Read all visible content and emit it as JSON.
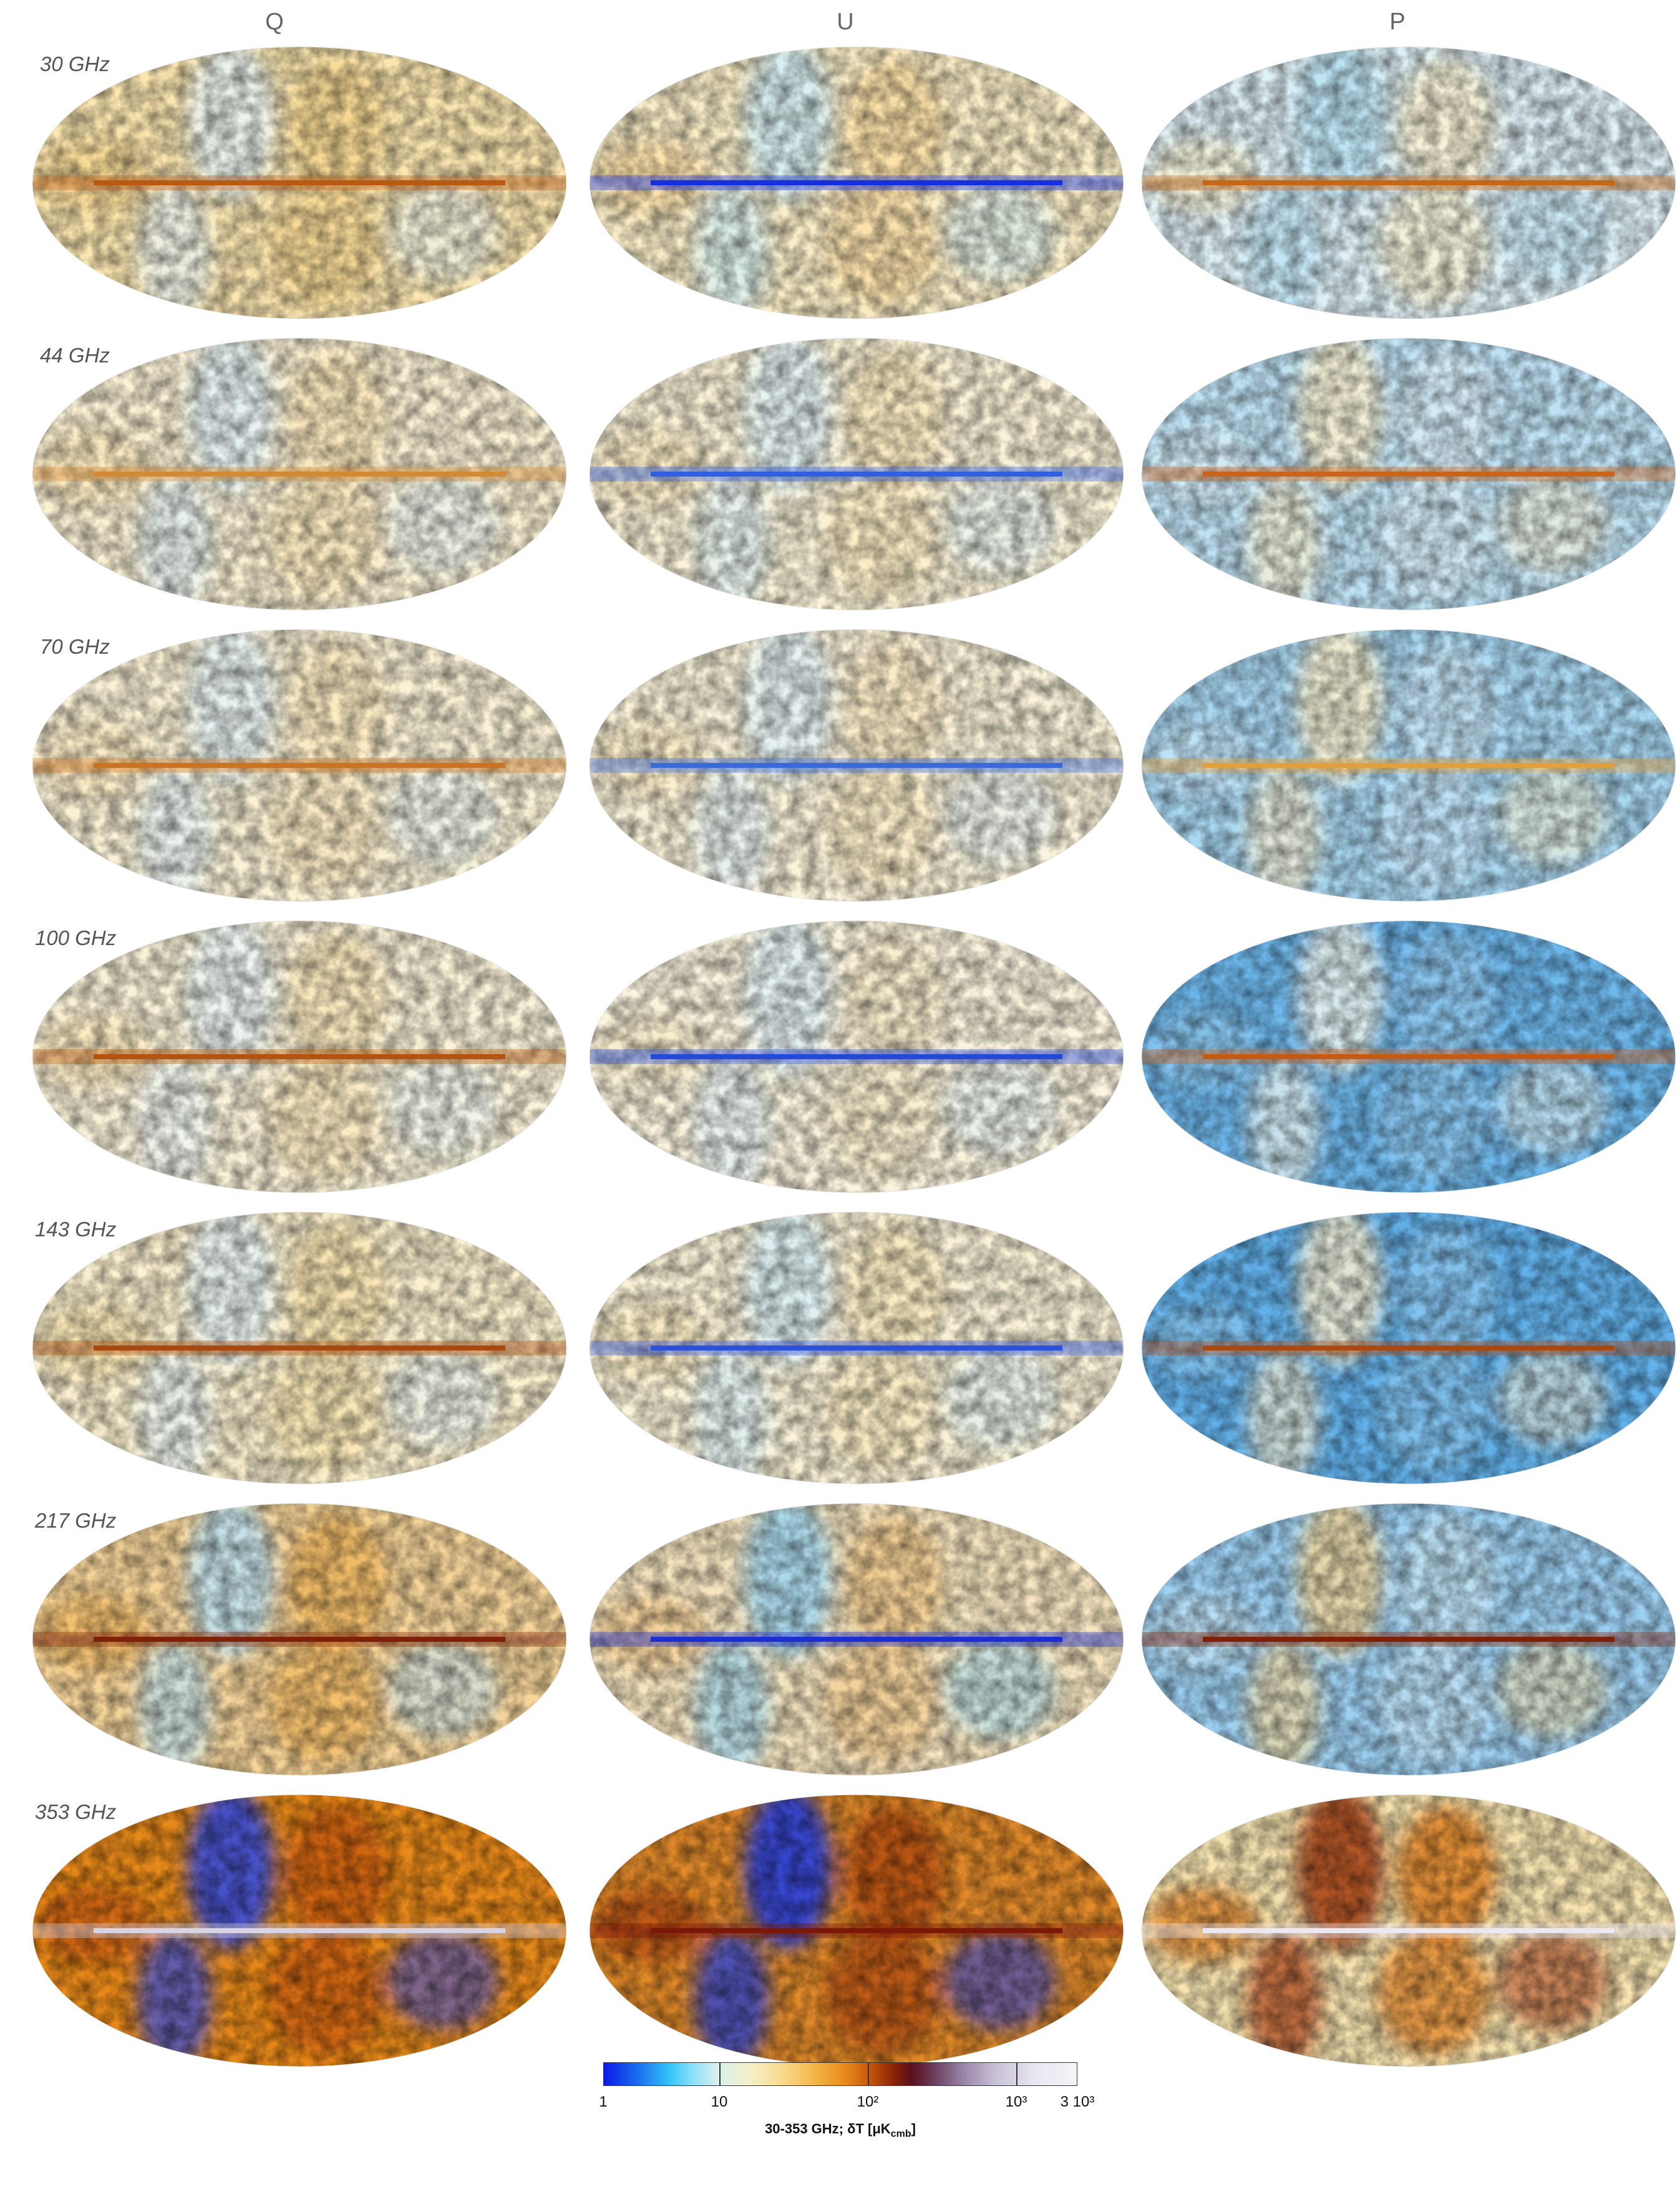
{
  "columns": [
    "Q",
    "U",
    "P"
  ],
  "rows": [
    {
      "label": "30 GHz"
    },
    {
      "label": "44 GHz"
    },
    {
      "label": "70 GHz"
    },
    {
      "label": "100 GHz"
    },
    {
      "label": "143 GHz"
    },
    {
      "label": "217 GHz"
    },
    {
      "label": "353 GHz"
    }
  ],
  "colorbar": {
    "ticks": [
      "1",
      "10",
      "10²",
      "10³",
      "3 10³"
    ],
    "title": "30-353 GHz; δT [μK",
    "title_sub": "cmb",
    "title_end": "]"
  },
  "colors": {
    "deep_blue": "#0a19e6",
    "cyan": "#34c6f7",
    "cream": "#f6f0c8",
    "orange": "#e88a1a",
    "dark_red": "#8e2608",
    "lavender": "#c8c2d8"
  }
}
